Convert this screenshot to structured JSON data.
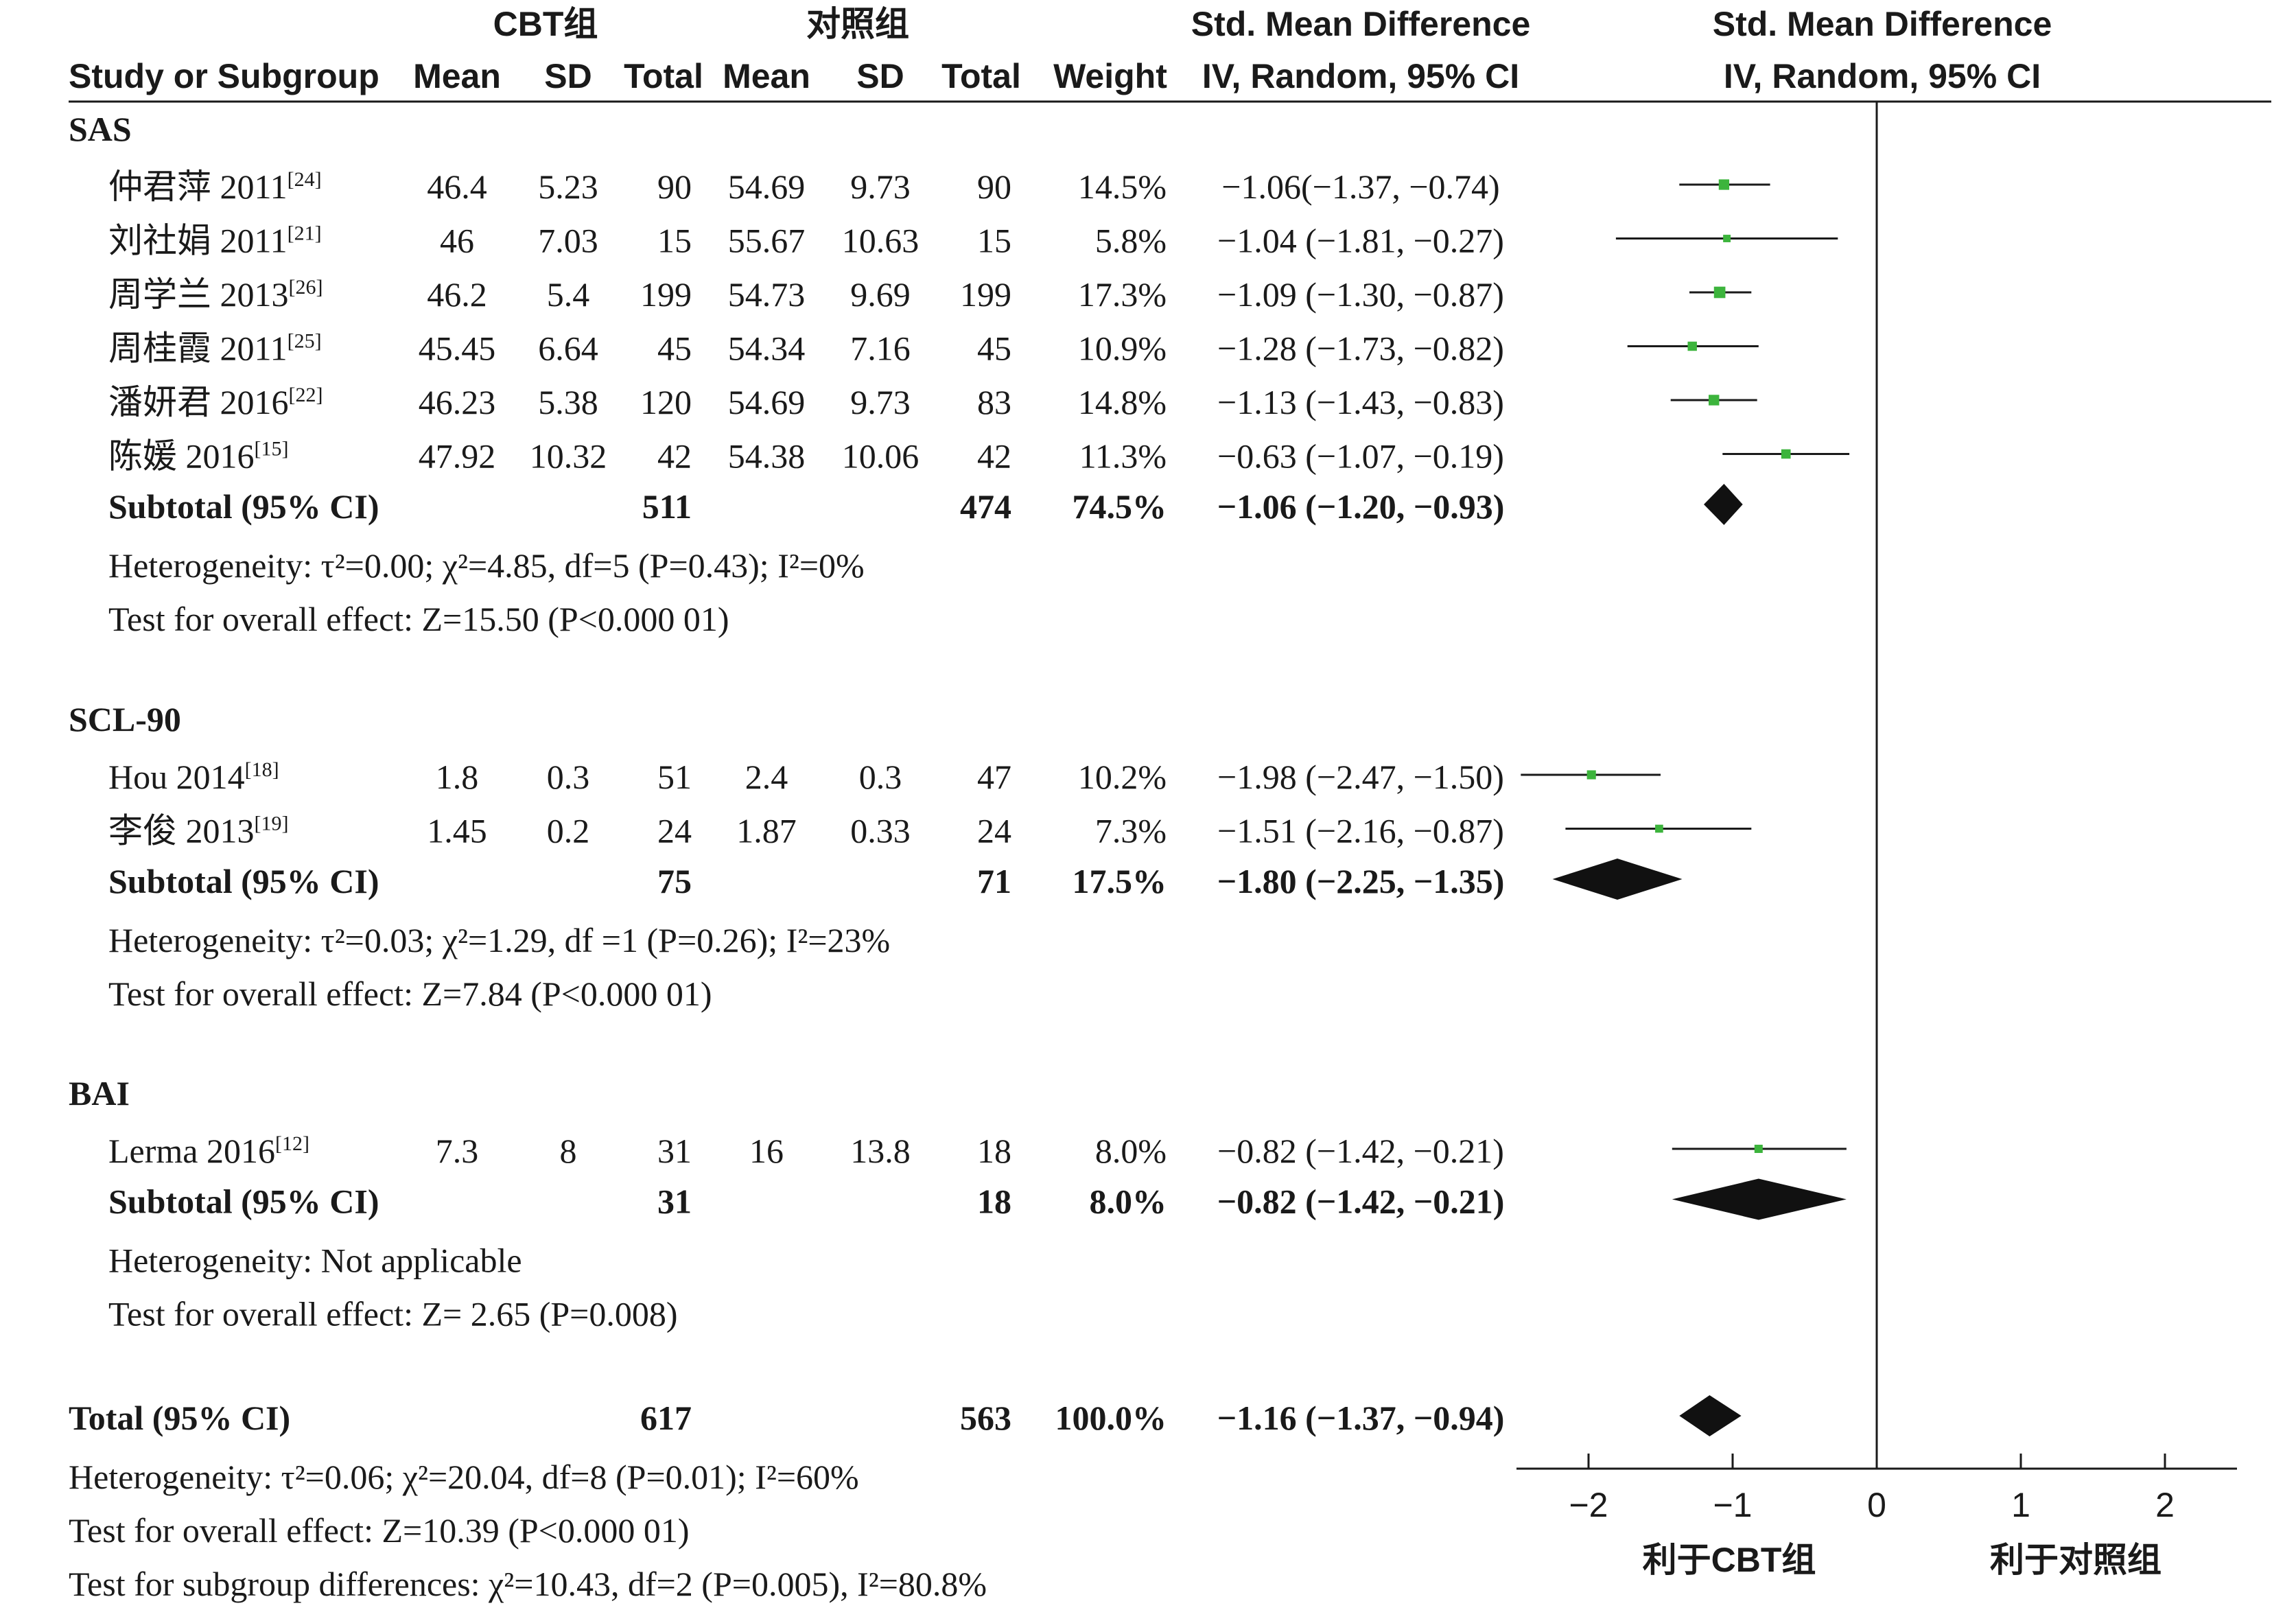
{
  "chart_data": {
    "type": "forest",
    "header": {
      "group1": "CBT组",
      "group2": "对照组",
      "study_col": "Study or Subgroup",
      "mean": "Mean",
      "sd": "SD",
      "total": "Total",
      "weight": "Weight",
      "effect_title": "Std. Mean Difference",
      "effect_method": "IV, Random, 95% CI",
      "plot_title": "Std. Mean Difference",
      "plot_method": "IV, Random, 95% CI"
    },
    "subgroups": [
      {
        "name": "SAS",
        "studies": [
          {
            "label": "仲君萍 2011",
            "ref": "[24]",
            "m1": "46.4",
            "sd1": "5.23",
            "n1": "90",
            "m2": "54.69",
            "sd2": "9.73",
            "n2": "90",
            "weight": "14.5%",
            "ci_text": "−1.06(−1.37, −0.74)",
            "est": -1.06,
            "lo": -1.37,
            "hi": -0.74
          },
          {
            "label": "刘社娟 2011",
            "ref": "[21]",
            "m1": "46",
            "sd1": "7.03",
            "n1": "15",
            "m2": "55.67",
            "sd2": "10.63",
            "n2": "15",
            "weight": "5.8%",
            "ci_text": "−1.04 (−1.81, −0.27)",
            "est": -1.04,
            "lo": -1.81,
            "hi": -0.27
          },
          {
            "label": "周学兰 2013",
            "ref": "[26]",
            "m1": "46.2",
            "sd1": "5.4",
            "n1": "199",
            "m2": "54.73",
            "sd2": "9.69",
            "n2": "199",
            "weight": "17.3%",
            "ci_text": "−1.09 (−1.30, −0.87)",
            "est": -1.09,
            "lo": -1.3,
            "hi": -0.87
          },
          {
            "label": "周桂霞 2011",
            "ref": "[25]",
            "m1": "45.45",
            "sd1": "6.64",
            "n1": "45",
            "m2": "54.34",
            "sd2": "7.16",
            "n2": "45",
            "weight": "10.9%",
            "ci_text": "−1.28 (−1.73, −0.82)",
            "est": -1.28,
            "lo": -1.73,
            "hi": -0.82
          },
          {
            "label": "潘妍君 2016",
            "ref": "[22]",
            "m1": "46.23",
            "sd1": "5.38",
            "n1": "120",
            "m2": "54.69",
            "sd2": "9.73",
            "n2": "83",
            "weight": "14.8%",
            "ci_text": "−1.13 (−1.43, −0.83)",
            "est": -1.13,
            "lo": -1.43,
            "hi": -0.83
          },
          {
            "label": "陈媛 2016",
            "ref": "[15]",
            "m1": "47.92",
            "sd1": "10.32",
            "n1": "42",
            "m2": "54.38",
            "sd2": "10.06",
            "n2": "42",
            "weight": "11.3%",
            "ci_text": "−0.63 (−1.07, −0.19)",
            "est": -0.63,
            "lo": -1.07,
            "hi": -0.19
          }
        ],
        "subtotal": {
          "label": "Subtotal (95% CI)",
          "n1": "511",
          "n2": "474",
          "weight": "74.5%",
          "ci_text": "−1.06 (−1.20, −0.93)",
          "est": -1.06,
          "lo": -1.2,
          "hi": -0.93
        },
        "heterogeneity": "Heterogeneity: τ²=0.00; χ²=4.85, df=5 (P=0.43); I²=0%",
        "overall": "Test for overall effect: Z=15.50 (P<0.000 01)"
      },
      {
        "name": "SCL-90",
        "studies": [
          {
            "label": "Hou 2014",
            "ref": "[18]",
            "m1": "1.8",
            "sd1": "0.3",
            "n1": "51",
            "m2": "2.4",
            "sd2": "0.3",
            "n2": "47",
            "weight": "10.2%",
            "ci_text": "−1.98 (−2.47, −1.50)",
            "est": -1.98,
            "lo": -2.47,
            "hi": -1.5
          },
          {
            "label": "李俊 2013",
            "ref": "[19]",
            "m1": "1.45",
            "sd1": "0.2",
            "n1": "24",
            "m2": "1.87",
            "sd2": "0.33",
            "n2": "24",
            "weight": "7.3%",
            "ci_text": "−1.51 (−2.16, −0.87)",
            "est": -1.51,
            "lo": -2.16,
            "hi": -0.87
          }
        ],
        "subtotal": {
          "label": "Subtotal (95% CI)",
          "n1": "75",
          "n2": "71",
          "weight": "17.5%",
          "ci_text": "−1.80 (−2.25, −1.35)",
          "est": -1.8,
          "lo": -2.25,
          "hi": -1.35
        },
        "heterogeneity": "Heterogeneity: τ²=0.03; χ²=1.29, df =1 (P=0.26); I²=23%",
        "overall": "Test for overall effect: Z=7.84 (P<0.000 01)"
      },
      {
        "name": "BAI",
        "studies": [
          {
            "label": "Lerma 2016",
            "ref": "[12]",
            "m1": "7.3",
            "sd1": "8",
            "n1": "31",
            "m2": "16",
            "sd2": "13.8",
            "n2": "18",
            "weight": "8.0%",
            "ci_text": "−0.82 (−1.42, −0.21)",
            "est": -0.82,
            "lo": -1.42,
            "hi": -0.21
          }
        ],
        "subtotal": {
          "label": "Subtotal (95% CI)",
          "n1": "31",
          "n2": "18",
          "weight": "8.0%",
          "ci_text": "−0.82 (−1.42, −0.21)",
          "est": -0.82,
          "lo": -1.42,
          "hi": -0.21
        },
        "heterogeneity": "Heterogeneity: Not applicable",
        "overall": "Test for overall effect: Z= 2.65 (P=0.008)"
      }
    ],
    "total": {
      "label": "Total (95% CI)",
      "n1": "617",
      "n2": "563",
      "weight": "100.0%",
      "ci_text": "−1.16 (−1.37, −0.94)",
      "est": -1.16,
      "lo": -1.37,
      "hi": -0.94,
      "heterogeneity": "Heterogeneity: τ²=0.06; χ²=20.04, df=8 (P=0.01); I²=60%",
      "overall": "Test for overall effect: Z=10.39 (P<0.000 01)",
      "subgroup_diff": "Test for subgroup differences: χ²=10.43, df=2 (P=0.005), I²=80.8%"
    },
    "axis": {
      "xlim": [
        -2.5,
        2.5
      ],
      "ticks": [
        -2,
        -1,
        0,
        1,
        2
      ],
      "tick_labels": [
        "−2",
        "−1",
        "0",
        "1",
        "2"
      ],
      "favours_left": "利于CBT组",
      "favours_right": "利于对照组"
    },
    "colors": {
      "study_marker": "#3cb43c",
      "diamond": "#111111",
      "text": "#1a1a1a"
    }
  }
}
